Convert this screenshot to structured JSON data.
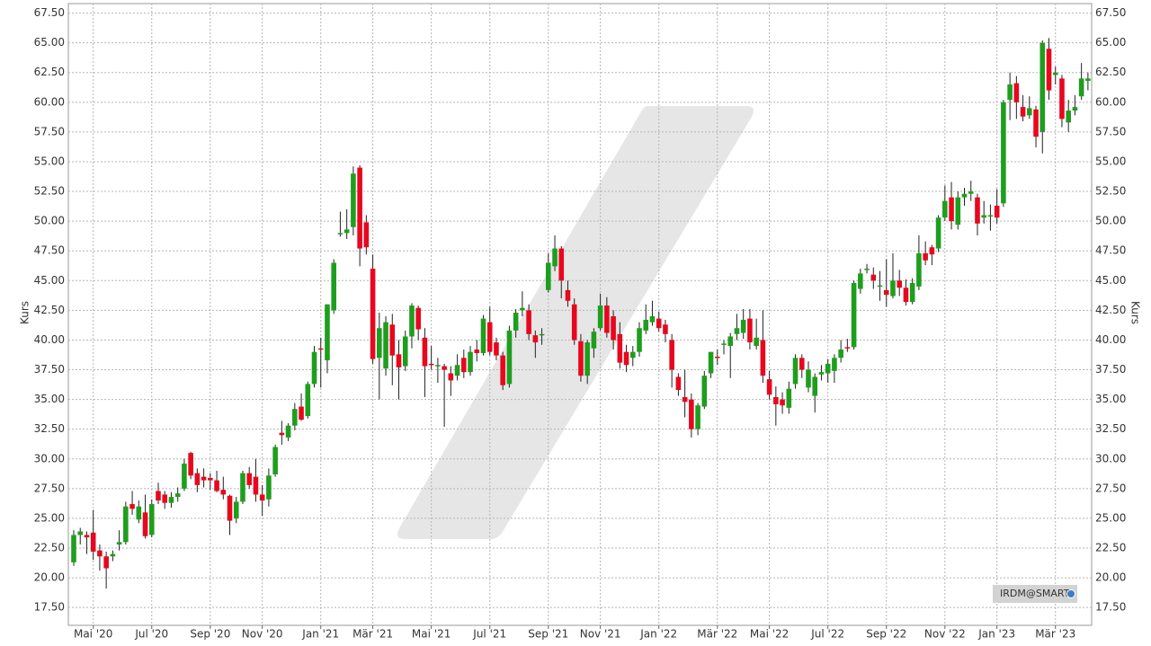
{
  "chart_data": {
    "type": "candlestick",
    "y_label": "Kurs",
    "watermark": "IRDM@SMART",
    "categories": [
      null,
      null,
      null,
      "Mai '20",
      null,
      null,
      null,
      null,
      null,
      null,
      null,
      null,
      "Jul '20",
      null,
      null,
      null,
      null,
      null,
      null,
      null,
      null,
      "Sep '20",
      null,
      null,
      null,
      null,
      null,
      null,
      null,
      "Nov '20",
      null,
      null,
      null,
      null,
      null,
      null,
      null,
      null,
      "Jan '21",
      null,
      null,
      null,
      null,
      null,
      null,
      null,
      "Mär '21",
      null,
      null,
      null,
      null,
      null,
      null,
      null,
      null,
      "Mai '21",
      null,
      null,
      null,
      null,
      null,
      null,
      null,
      null,
      "Jul '21",
      null,
      null,
      null,
      null,
      null,
      null,
      null,
      null,
      "Sep '21",
      null,
      null,
      null,
      null,
      null,
      null,
      null,
      "Nov '21",
      null,
      null,
      null,
      null,
      null,
      null,
      null,
      null,
      "Jan '22",
      null,
      null,
      null,
      null,
      null,
      null,
      null,
      null,
      "Mär '22",
      null,
      null,
      null,
      null,
      null,
      null,
      null,
      "Mai '22",
      null,
      null,
      null,
      null,
      null,
      null,
      null,
      null,
      "Jul '22",
      null,
      null,
      null,
      null,
      null,
      null,
      null,
      null,
      "Sep '22",
      null,
      null,
      null,
      null,
      null,
      null,
      null,
      null,
      "Nov '22",
      null,
      null,
      null,
      null,
      null,
      null,
      null,
      "Jan '23",
      null,
      null,
      null,
      null,
      null,
      null,
      null,
      null,
      "Mär '23",
      null,
      null,
      null,
      null,
      null
    ],
    "candles": [
      [
        21.3,
        24.0,
        21.0,
        23.6
      ],
      [
        23.6,
        24.2,
        22.8,
        23.9
      ],
      [
        23.6,
        23.9,
        22.0,
        23.4
      ],
      [
        23.8,
        25.7,
        21.5,
        22.2
      ],
      [
        22.3,
        22.8,
        20.6,
        21.8
      ],
      [
        21.8,
        22.2,
        19.1,
        20.8
      ],
      [
        21.8,
        22.3,
        21.4,
        22.0
      ],
      [
        22.8,
        24.0,
        22.3,
        23.0
      ],
      [
        23.0,
        26.4,
        22.8,
        26.0
      ],
      [
        26.2,
        27.3,
        25.3,
        25.8
      ],
      [
        24.9,
        26.5,
        24.6,
        26.0
      ],
      [
        25.5,
        27.0,
        23.3,
        23.5
      ],
      [
        23.6,
        26.6,
        23.4,
        26.2
      ],
      [
        27.3,
        28.0,
        26.2,
        26.5
      ],
      [
        27.0,
        27.3,
        25.8,
        26.3
      ],
      [
        26.3,
        27.2,
        25.9,
        26.8
      ],
      [
        26.8,
        27.6,
        26.4,
        27.1
      ],
      [
        27.5,
        30.0,
        27.3,
        29.6
      ],
      [
        30.5,
        30.6,
        28.3,
        28.6
      ],
      [
        28.8,
        29.2,
        27.2,
        27.8
      ],
      [
        28.5,
        29.2,
        27.6,
        28.2
      ],
      [
        28.4,
        28.8,
        27.4,
        28.2
      ],
      [
        28.2,
        29.0,
        27.2,
        27.3
      ],
      [
        27.4,
        28.5,
        26.6,
        27.0
      ],
      [
        26.9,
        27.0,
        23.6,
        24.8
      ],
      [
        25.0,
        26.8,
        24.6,
        26.4
      ],
      [
        26.4,
        29.0,
        26.2,
        28.8
      ],
      [
        28.8,
        29.3,
        27.5,
        27.8
      ],
      [
        28.5,
        30.0,
        26.4,
        27.0
      ],
      [
        27.0,
        27.8,
        25.2,
        26.5
      ],
      [
        26.6,
        29.2,
        26.0,
        28.6
      ],
      [
        28.7,
        31.2,
        28.5,
        31.0
      ],
      [
        32.2,
        33.2,
        31.2,
        32.0
      ],
      [
        31.8,
        33.0,
        31.5,
        32.8
      ],
      [
        32.8,
        34.7,
        32.4,
        34.2
      ],
      [
        34.4,
        35.5,
        33.2,
        33.3
      ],
      [
        33.6,
        36.5,
        33.4,
        36.3
      ],
      [
        36.3,
        39.5,
        36.0,
        39.0
      ],
      [
        39.3,
        40.2,
        36.0,
        39.2
      ],
      [
        38.3,
        43.0,
        37.2,
        43.0
      ],
      [
        42.5,
        46.8,
        42.2,
        46.5
      ],
      [
        48.9,
        50.8,
        48.7,
        49.0
      ],
      [
        49.0,
        51.0,
        48.5,
        49.3
      ],
      [
        49.5,
        54.6,
        48.8,
        54.0
      ],
      [
        54.5,
        54.7,
        46.2,
        47.7
      ],
      [
        49.9,
        50.5,
        47.2,
        47.8
      ],
      [
        46.0,
        47.2,
        38.0,
        38.4
      ],
      [
        38.5,
        42.3,
        35.0,
        41.0
      ],
      [
        37.6,
        42.0,
        37.0,
        41.5
      ],
      [
        41.3,
        42.2,
        36.2,
        38.7
      ],
      [
        38.8,
        40.0,
        35.0,
        37.7
      ],
      [
        37.8,
        40.8,
        37.4,
        40.3
      ],
      [
        40.3,
        43.1,
        39.3,
        42.9
      ],
      [
        42.7,
        42.9,
        40.0,
        40.9
      ],
      [
        40.2,
        41.0,
        35.2,
        37.8
      ],
      [
        38.0,
        39.5,
        37.5,
        37.9
      ],
      [
        37.8,
        38.5,
        36.4,
        37.9
      ],
      [
        37.8,
        38.0,
        32.7,
        37.5
      ],
      [
        37.2,
        37.8,
        35.3,
        36.6
      ],
      [
        37.0,
        38.8,
        36.6,
        37.9
      ],
      [
        38.5,
        39.2,
        36.8,
        37.3
      ],
      [
        37.3,
        39.5,
        37.0,
        39.0
      ],
      [
        39.2,
        40.0,
        38.2,
        38.9
      ],
      [
        38.9,
        42.1,
        38.7,
        41.8
      ],
      [
        41.5,
        42.8,
        38.7,
        39.0
      ],
      [
        39.8,
        40.2,
        38.3,
        38.7
      ],
      [
        38.7,
        39.0,
        35.8,
        36.2
      ],
      [
        36.3,
        41.2,
        36.0,
        40.8
      ],
      [
        40.8,
        42.6,
        40.2,
        42.3
      ],
      [
        42.5,
        44.1,
        42.0,
        42.7
      ],
      [
        42.5,
        43.0,
        40.0,
        40.5
      ],
      [
        40.4,
        40.8,
        38.5,
        39.8
      ],
      [
        40.4,
        41.0,
        39.6,
        40.5
      ],
      [
        44.2,
        47.3,
        44.0,
        46.5
      ],
      [
        46.2,
        48.8,
        45.8,
        47.7
      ],
      [
        47.7,
        47.9,
        43.5,
        45.0
      ],
      [
        44.2,
        45.0,
        42.8,
        43.3
      ],
      [
        43.0,
        43.5,
        39.6,
        40.0
      ],
      [
        39.9,
        40.5,
        36.5,
        37.0
      ],
      [
        37.0,
        40.0,
        36.3,
        39.8
      ],
      [
        39.3,
        41.0,
        38.5,
        40.7
      ],
      [
        41.0,
        43.9,
        40.8,
        42.9
      ],
      [
        42.9,
        43.6,
        40.2,
        40.6
      ],
      [
        42.0,
        42.5,
        39.2,
        40.0
      ],
      [
        40.5,
        41.5,
        37.6,
        38.1
      ],
      [
        39.0,
        39.6,
        37.3,
        37.9
      ],
      [
        38.5,
        39.5,
        37.8,
        39.0
      ],
      [
        39.0,
        41.5,
        38.6,
        41.0
      ],
      [
        40.8,
        43.0,
        40.5,
        41.7
      ],
      [
        41.5,
        43.3,
        41.2,
        42.0
      ],
      [
        41.8,
        42.4,
        40.7,
        41.0
      ],
      [
        41.3,
        41.7,
        39.8,
        40.5
      ],
      [
        40.0,
        40.5,
        36.0,
        37.5
      ],
      [
        36.9,
        37.2,
        35.3,
        35.8
      ],
      [
        35.2,
        37.5,
        33.5,
        34.8
      ],
      [
        35.0,
        35.5,
        31.8,
        32.5
      ],
      [
        32.5,
        34.7,
        32.0,
        34.5
      ],
      [
        34.4,
        37.4,
        34.2,
        37.0
      ],
      [
        37.2,
        39.0,
        36.8,
        39.0
      ],
      [
        38.6,
        39.2,
        37.9,
        38.5
      ],
      [
        39.6,
        40.0,
        38.8,
        39.7
      ],
      [
        39.5,
        40.6,
        36.8,
        40.3
      ],
      [
        40.5,
        42.2,
        40.0,
        41.0
      ],
      [
        40.6,
        42.6,
        40.1,
        41.7
      ],
      [
        41.8,
        42.6,
        39.2,
        39.8
      ],
      [
        39.5,
        41.8,
        39.2,
        40.2
      ],
      [
        40.0,
        42.5,
        36.4,
        37.0
      ],
      [
        36.7,
        37.4,
        35.0,
        35.4
      ],
      [
        35.2,
        36.1,
        32.8,
        34.6
      ],
      [
        35.0,
        35.6,
        33.8,
        34.5
      ],
      [
        34.3,
        36.5,
        33.8,
        35.9
      ],
      [
        36.3,
        38.8,
        35.9,
        38.5
      ],
      [
        38.5,
        38.8,
        36.8,
        37.5
      ],
      [
        36.0,
        38.2,
        35.6,
        37.5
      ],
      [
        35.3,
        37.2,
        33.9,
        36.9
      ],
      [
        37.1,
        37.9,
        36.6,
        37.3
      ],
      [
        37.2,
        38.4,
        36.4,
        38.0
      ],
      [
        37.4,
        38.8,
        36.4,
        38.5
      ],
      [
        38.5,
        40.0,
        38.1,
        39.2
      ],
      [
        39.4,
        40.1,
        39.0,
        39.3
      ],
      [
        39.4,
        45.0,
        39.2,
        44.8
      ],
      [
        44.3,
        46.0,
        43.9,
        45.6
      ],
      [
        45.9,
        46.4,
        45.6,
        46.0
      ],
      [
        45.5,
        46.1,
        44.3,
        45.0
      ],
      [
        44.5,
        45.8,
        43.3,
        44.6
      ],
      [
        44.2,
        46.8,
        42.8,
        43.8
      ],
      [
        43.7,
        47.3,
        43.5,
        45.0
      ],
      [
        45.0,
        45.9,
        43.7,
        44.4
      ],
      [
        44.4,
        45.1,
        42.9,
        43.2
      ],
      [
        43.2,
        45.2,
        43.0,
        44.8
      ],
      [
        44.5,
        48.8,
        44.2,
        47.3
      ],
      [
        47.3,
        48.3,
        46.3,
        46.7
      ],
      [
        47.8,
        48.0,
        46.3,
        47.2
      ],
      [
        47.7,
        50.5,
        47.4,
        50.3
      ],
      [
        50.3,
        53.0,
        50.0,
        51.7
      ],
      [
        52.0,
        53.3,
        49.3,
        50.0
      ],
      [
        49.7,
        52.5,
        49.3,
        52.0
      ],
      [
        52.0,
        52.8,
        51.3,
        52.3
      ],
      [
        52.3,
        53.4,
        51.7,
        52.5
      ],
      [
        52.0,
        52.3,
        48.8,
        49.8
      ],
      [
        50.3,
        51.7,
        49.8,
        50.5
      ],
      [
        50.4,
        51.4,
        49.2,
        50.5
      ],
      [
        51.3,
        52.7,
        49.8,
        50.3
      ],
      [
        51.5,
        60.2,
        51.2,
        60.0
      ],
      [
        60.2,
        62.5,
        58.5,
        61.5
      ],
      [
        61.6,
        62.2,
        58.6,
        60.0
      ],
      [
        59.6,
        60.6,
        58.4,
        58.8
      ],
      [
        58.9,
        60.5,
        58.6,
        59.5
      ],
      [
        59.4,
        59.7,
        56.2,
        57.1
      ],
      [
        57.5,
        65.2,
        55.7,
        65.0
      ],
      [
        64.5,
        65.4,
        60.2,
        61.0
      ],
      [
        62.3,
        63.0,
        61.5,
        62.5
      ],
      [
        62.0,
        62.3,
        57.9,
        58.6
      ],
      [
        58.3,
        60.2,
        57.5,
        59.3
      ],
      [
        59.3,
        60.6,
        58.9,
        59.6
      ],
      [
        60.5,
        63.3,
        60.2,
        62.0
      ],
      [
        61.8,
        62.5,
        61.0,
        62.0
      ]
    ],
    "up_color": "#1e9e1e",
    "down_color": "#e8071e",
    "ylim": [
      16,
      68.3
    ],
    "yticks": [
      {
        "value": 17.5,
        "label": "17.50"
      },
      {
        "value": 20,
        "label": "20.00"
      },
      {
        "value": 22.5,
        "label": "22.50"
      },
      {
        "value": 25,
        "label": "25.00"
      },
      {
        "value": 27.5,
        "label": "27.50"
      },
      {
        "value": 30,
        "label": "30.00"
      },
      {
        "value": 32.5,
        "label": "32.50"
      },
      {
        "value": 35,
        "label": "35.00"
      },
      {
        "value": 37.5,
        "label": "37.50"
      },
      {
        "value": 40,
        "label": "40.00"
      },
      {
        "value": 42.5,
        "label": "42.50"
      },
      {
        "value": 45,
        "label": "45.00"
      },
      {
        "value": 47.5,
        "label": "47.50"
      },
      {
        "value": 50,
        "label": "50.00"
      },
      {
        "value": 52.5,
        "label": "52.50"
      },
      {
        "value": 55,
        "label": "55.00"
      },
      {
        "value": 57.5,
        "label": "57.50"
      },
      {
        "value": 60,
        "label": "60.00"
      },
      {
        "value": 62.5,
        "label": "62.50"
      },
      {
        "value": 65,
        "label": "65.00"
      },
      {
        "value": 67.5,
        "label": "67.50"
      }
    ],
    "grid": true
  }
}
